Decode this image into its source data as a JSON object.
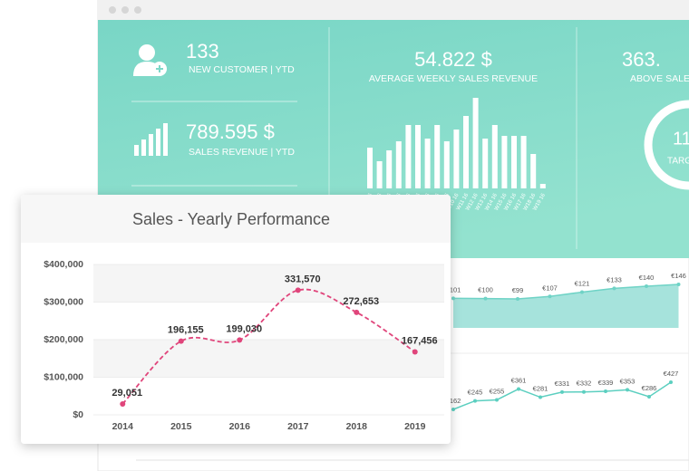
{
  "kpis": [
    {
      "value": "133",
      "label": "NEW CUSTOMER | YTD"
    },
    {
      "value": "789.595 $",
      "label": "SALES REVENUE | YTD"
    },
    {
      "value": "54.822 $",
      "label": "AVERAGE WEEKLY SALES REVENUE"
    },
    {
      "value": "363.",
      "label": "ABOVE SALE"
    }
  ],
  "gauge": {
    "value": "11",
    "label": "TARG"
  },
  "chart_data": [
    {
      "type": "line",
      "title": "Sales - Yearly Performance",
      "categories": [
        "2014",
        "2015",
        "2016",
        "2017",
        "2018",
        "2019"
      ],
      "values": [
        29051,
        196155,
        199030,
        331570,
        272653,
        167456
      ],
      "value_labels": [
        "29,051",
        "196,155",
        "199,030",
        "331,570",
        "272,653",
        "167,456"
      ],
      "color": "#e0457b",
      "line_style": "dashed",
      "smooth": true,
      "grid": true,
      "ylim": [
        0,
        400000
      ],
      "yticks": [
        {
          "value": 0,
          "label": "$0"
        },
        {
          "value": 100000,
          "label": "$100,000"
        },
        {
          "value": 200000,
          "label": "$200,000"
        },
        {
          "value": 300000,
          "label": "$300,000"
        },
        {
          "value": 400000,
          "label": "$400,000"
        }
      ]
    },
    {
      "type": "bar",
      "categories": [
        "W1 16",
        "W2 16",
        "W3 16",
        "W4 16",
        "W5 16",
        "W6 16",
        "W7 16",
        "W8 16",
        "W9 16",
        "W10 16",
        "W11 16",
        "W12 16",
        "W13 16",
        "W14 16",
        "W15 16",
        "W16 16",
        "W17 16",
        "W18 16",
        "W19 16"
      ],
      "values": [
        45,
        30,
        42,
        52,
        70,
        70,
        55,
        70,
        52,
        65,
        80,
        100,
        55,
        70,
        58,
        58,
        58,
        38,
        5
      ],
      "color": "#ffffff"
    },
    {
      "type": "area",
      "values": [
        101,
        100,
        99,
        107,
        121,
        133,
        140,
        146
      ],
      "value_labels": [
        "€101",
        "€100",
        "€99",
        "€107",
        "€121",
        "€133",
        "€140",
        "€146"
      ],
      "color": "#a6e3dc"
    },
    {
      "type": "line",
      "values": [
        162,
        245,
        255,
        361,
        281,
        331,
        332,
        339,
        353,
        286,
        427
      ],
      "value_labels": [
        "€162",
        "€245",
        "€255",
        "€361",
        "€281",
        "€331",
        "€332",
        "€339",
        "€353",
        "€286",
        "€427"
      ],
      "color": "#5ccfc0"
    }
  ]
}
